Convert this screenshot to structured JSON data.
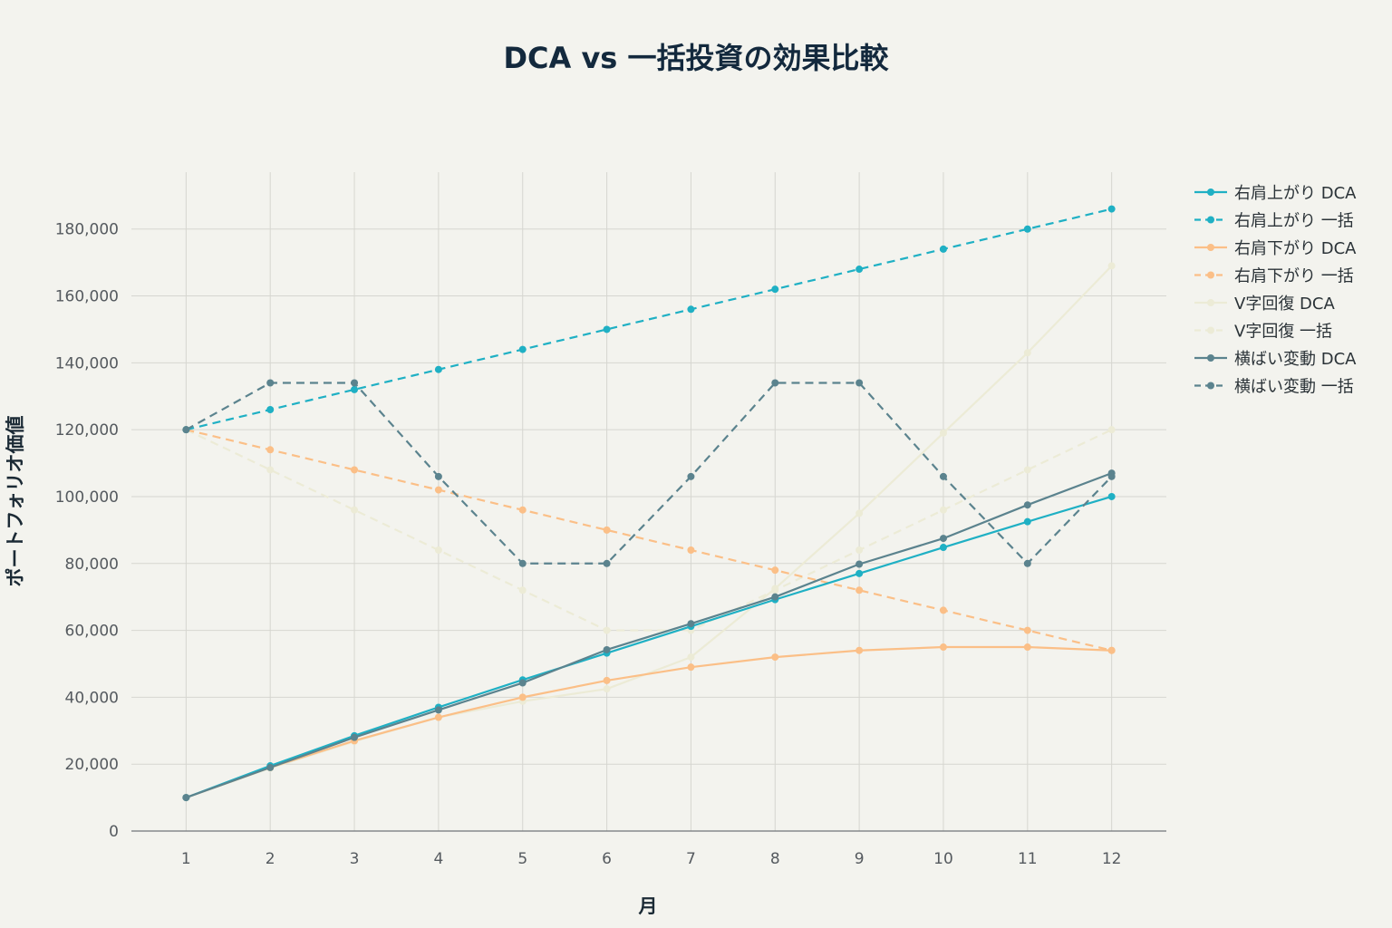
{
  "chart_data": {
    "type": "line",
    "title": "DCA vs 一括投資の効果比較",
    "xlabel": "月",
    "ylabel": "ポートフォリオ価値",
    "x": [
      1,
      2,
      3,
      4,
      5,
      6,
      7,
      8,
      9,
      10,
      11,
      12
    ],
    "x_ticks": [
      "1",
      "2",
      "3",
      "4",
      "5",
      "6",
      "7",
      "8",
      "9",
      "10",
      "11",
      "12"
    ],
    "ylim": [
      0,
      197000
    ],
    "y_ticks": [
      0,
      20000,
      40000,
      60000,
      80000,
      100000,
      120000,
      140000,
      160000,
      180000
    ],
    "y_tick_labels": [
      "0",
      "20,000",
      "40,000",
      "60,000",
      "80,000",
      "100,000",
      "120,000",
      "140,000",
      "160,000",
      "180,000"
    ],
    "grid": true,
    "legend_position": "top-right",
    "series": [
      {
        "name": "右肩上がり DCA",
        "color": "#1fb0c4",
        "dash": "solid",
        "values": [
          10000,
          19500,
          28500,
          37000,
          45200,
          53200,
          61200,
          69200,
          77000,
          84800,
          92500,
          100000
        ]
      },
      {
        "name": "右肩上がり 一括",
        "color": "#1fb0c4",
        "dash": "dashed",
        "values": [
          120000,
          126000,
          132000,
          138000,
          144000,
          150000,
          156000,
          162000,
          168000,
          174000,
          180000,
          186000
        ]
      },
      {
        "name": "右肩下がり DCA",
        "color": "#fbbf87",
        "dash": "solid",
        "values": [
          10000,
          19000,
          27000,
          34000,
          40000,
          45000,
          49000,
          52000,
          54000,
          55000,
          55000,
          54000
        ]
      },
      {
        "name": "右肩下がり 一括",
        "color": "#fbbf87",
        "dash": "dashed",
        "values": [
          120000,
          114000,
          108000,
          102000,
          96000,
          90000,
          84000,
          78000,
          72000,
          66000,
          60000,
          54000
        ]
      },
      {
        "name": "V字回復 DCA",
        "color": "#ecebd6",
        "dash": "solid",
        "values": [
          10000,
          18800,
          26800,
          34000,
          38800,
          42500,
          52000,
          72500,
          95000,
          119000,
          143000,
          169000
        ]
      },
      {
        "name": "V字回復 一括",
        "color": "#ecebd6",
        "dash": "dashed",
        "values": [
          120000,
          108000,
          96000,
          84000,
          72000,
          60000,
          60000,
          72000,
          84000,
          96000,
          108000,
          120000
        ]
      },
      {
        "name": "横ばい変動 DCA",
        "color": "#5b838e",
        "dash": "solid",
        "values": [
          10000,
          19000,
          28000,
          36200,
          44300,
          54200,
          62000,
          70000,
          79800,
          87500,
          97500,
          107000
        ]
      },
      {
        "name": "横ばい変動 一括",
        "color": "#5b838e",
        "dash": "dashed",
        "values": [
          120000,
          134000,
          134000,
          106000,
          80000,
          80000,
          106000,
          134000,
          134000,
          106000,
          80000,
          106000
        ]
      }
    ]
  }
}
